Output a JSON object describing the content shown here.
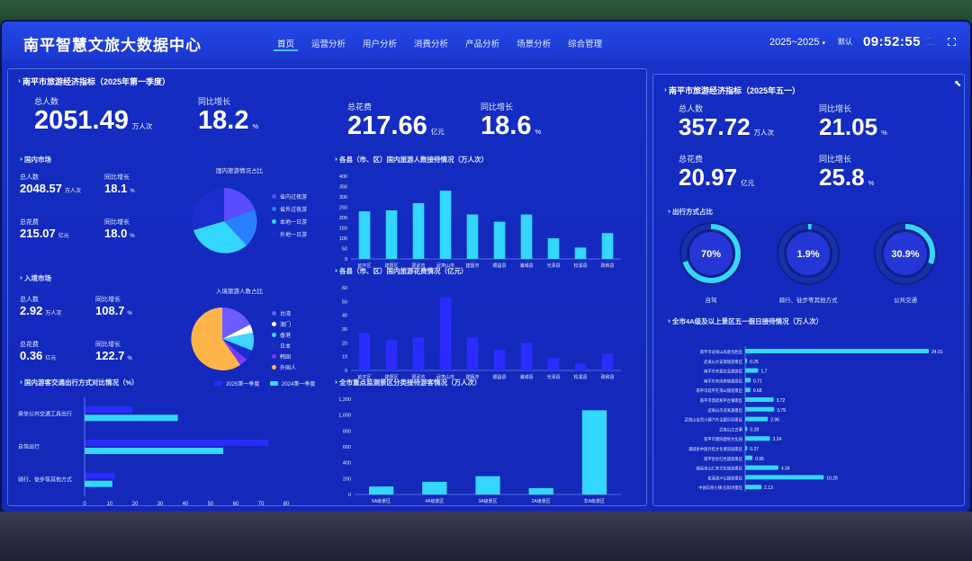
{
  "header": {
    "title": "南平智慧文旅大数据中心",
    "nav": [
      "首页",
      "运营分析",
      "用户分析",
      "消费分析",
      "产品分析",
      "场景分析",
      "综合管理"
    ],
    "year": "2025~2025",
    "default_label": "默认",
    "clock": "09:52:55"
  },
  "left_panel": {
    "title": "南平市旅游经济指标（2025年第一季度）",
    "total_people_label": "总人数",
    "total_people_value": "2051.49",
    "total_people_unit": "万人次",
    "yoy1_label": "同比增长",
    "yoy1_value": "18.2",
    "yoy1_unit": "%",
    "total_spend_label": "总花费",
    "total_spend_value": "217.66",
    "total_spend_unit": "亿元",
    "yoy2_label": "同比增长",
    "yoy2_value": "18.6",
    "yoy2_unit": "%"
  },
  "domestic": {
    "title": "国内市场",
    "people_label": "总人数",
    "people_value": "2048.57",
    "people_unit": "万人次",
    "yoy1_label": "同比增长",
    "yoy1_value": "18.1",
    "yoy1_unit": "%",
    "spend_label": "总花费",
    "spend_value": "215.07",
    "spend_unit": "亿元",
    "yoy2_label": "同比增长",
    "yoy2_value": "18.0",
    "yoy2_unit": "%",
    "pie_title": "国内旅游情况占比",
    "pie_legend": [
      "省内过夜游",
      "省外过夜游",
      "本地一日游",
      "外地一日游"
    ],
    "pie_colors": [
      "#5a4cff",
      "#2a7fff",
      "#34d7ff",
      "#1b2fd0"
    ]
  },
  "inbound": {
    "title": "入境市场",
    "people_label": "总人数",
    "people_value": "2.92",
    "people_unit": "万人次",
    "yoy1_label": "同比增长",
    "yoy1_value": "108.7",
    "yoy1_unit": "%",
    "spend_label": "总花费",
    "spend_value": "0.36",
    "spend_unit": "亿元",
    "yoy2_label": "同比增长",
    "yoy2_value": "122.7",
    "yoy2_unit": "%",
    "pie_title": "入境旅游人数占比",
    "pie_legend": [
      "台湾",
      "澳门",
      "香港",
      "日本",
      "韩国",
      "外国人"
    ],
    "pie_colors": [
      "#6a5cff",
      "#ffffff",
      "#3fd3ff",
      "#1b2fd0",
      "#7a3cff",
      "#ffb44a"
    ]
  },
  "transport": {
    "title": "国内游客交通出行方式对比情况（%）",
    "legend": [
      "2025第一季度",
      "2024第一季度"
    ],
    "colors": [
      "#2b2bff",
      "#34d7ff"
    ],
    "categories": [
      "乘坐公共交通工具出行",
      "自驾出行",
      "骑行、徒步等其他方式"
    ],
    "series_2025": [
      19,
      73,
      12
    ],
    "series_2024": [
      37,
      55,
      11
    ],
    "xticks": [
      "0",
      "10",
      "20",
      "30",
      "40",
      "50",
      "60",
      "70",
      "80"
    ]
  },
  "county_people": {
    "title": "各县（市、区）国内旅游人数接待情况（万人次）",
    "categories": [
      "延平区",
      "建阳区",
      "邵武市",
      "武夷山市",
      "建瓯市",
      "顺昌县",
      "浦城县",
      "光泽县",
      "松溪县",
      "政和县"
    ],
    "values": [
      230,
      235,
      270,
      330,
      215,
      180,
      215,
      100,
      55,
      125
    ],
    "yticks": [
      "0",
      "50",
      "100",
      "150",
      "200",
      "250",
      "300",
      "350",
      "400"
    ],
    "ymax": 400
  },
  "county_spend": {
    "title": "各县（市、区）国内旅游花费情况（亿元）",
    "categories": [
      "延平区",
      "建阳区",
      "邵武市",
      "武夷山市",
      "建瓯市",
      "顺昌县",
      "浦城县",
      "光泽县",
      "松溪县",
      "政和县"
    ],
    "values": [
      27,
      22,
      24,
      53,
      24,
      15,
      20,
      9,
      5,
      12
    ],
    "yticks": [
      "0",
      "10",
      "20",
      "30",
      "40",
      "50",
      "60"
    ],
    "ymax": 60
  },
  "scenic_grade": {
    "title": "全市重点监测景区分类接待游客情况（万人次）",
    "categories": [
      "5A级景区",
      "4A级景区",
      "3A级景区",
      "2A级景区",
      "非A级景区"
    ],
    "values": [
      100,
      160,
      230,
      80,
      1060
    ],
    "yticks": [
      "0",
      "200",
      "400",
      "600",
      "800",
      "1,000",
      "1,200"
    ],
    "ymax": 1200
  },
  "right_panel": {
    "title": "南平市旅游经济指标（2025年五一）",
    "people_label": "总人数",
    "people_value": "357.72",
    "people_unit": "万人次",
    "yoy1_label": "同比增长",
    "yoy1_value": "21.05",
    "yoy1_unit": "%",
    "spend_label": "总花费",
    "spend_value": "20.97",
    "spend_unit": "亿元",
    "yoy2_label": "同比增长",
    "yoy2_value": "25.8",
    "yoy2_unit": "%"
  },
  "travel_mode": {
    "title": "出行方式占比",
    "items": [
      {
        "label": "自驾",
        "value_text": "70%",
        "value": 70
      },
      {
        "label": "骑行、徒步等其他方式",
        "value_text": "1.9%",
        "value": 1.9
      },
      {
        "label": "公共交通",
        "value_text": "30.9%",
        "value": 30.9
      }
    ]
  },
  "scenic_daily": {
    "title": "全市4A级及以上景区五一假日接待情况（万人次）",
    "items": [
      {
        "name": "南平市武夷山风景名胜区",
        "value": 24.01
      },
      {
        "name": "武夷山大安源旅游景区",
        "value": 0.25
      },
      {
        "name": "南平市天恩农业旅游区",
        "value": 1.7
      },
      {
        "name": "南平市天成奇峡旅游区",
        "value": 0.71
      },
      {
        "name": "南平市延平茫荡山旅游景区",
        "value": 0.68
      },
      {
        "name": "南平市邵武和平古镇景区",
        "value": 3.72
      },
      {
        "name": "武夷山市武夷源景区",
        "value": 3.79
      },
      {
        "name": "武夷山自然小镇汽车主题乐园景区",
        "value": 2.96
      },
      {
        "name": "武夷山江古寨",
        "value": 0.28
      },
      {
        "name": "南平市建阳建窑文化园",
        "value": 3.24
      },
      {
        "name": "浦城县中国丹桂文化博览园景区",
        "value": 0.27
      },
      {
        "name": "南平金杉红色旅游景区",
        "value": 0.95
      },
      {
        "name": "顺昌宝山仁寿文化旅游景区",
        "value": 4.34
      },
      {
        "name": "松溪湛卢山旅游景区",
        "value": 10.28
      },
      {
        "name": "中国白茶小镇·石圳湾景区",
        "value": 2.13
      }
    ],
    "max": 24.01
  }
}
